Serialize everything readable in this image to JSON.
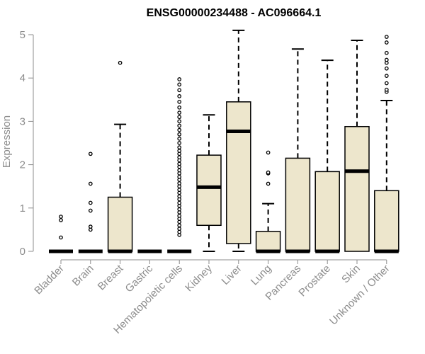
{
  "chart_data": {
    "type": "boxplot",
    "title": "ENSG00000234488 - AC096664.1",
    "ylabel": "Expression",
    "ylim": [
      0,
      5
    ],
    "yticks": [
      0,
      1,
      2,
      3,
      4,
      5
    ],
    "categories": [
      "Bladder",
      "Brain",
      "Breast",
      "Gastric",
      "Hematopoietic cells",
      "Kidney",
      "Liver",
      "Lung",
      "Pancreas",
      "Prostate",
      "Skin",
      "Unknown / Other"
    ],
    "boxes": [
      {
        "category": "Bladder",
        "q1": 0,
        "median": 0,
        "q3": 0,
        "whisker_low": 0,
        "whisker_high": 0,
        "outliers": [
          0.32,
          0.72,
          0.8
        ]
      },
      {
        "category": "Brain",
        "q1": 0,
        "median": 0,
        "q3": 0,
        "whisker_low": 0,
        "whisker_high": 0,
        "outliers": [
          0.5,
          0.57,
          0.94,
          1.12,
          1.56,
          2.25
        ]
      },
      {
        "category": "Breast",
        "q1": 0,
        "median": 0,
        "q3": 1.25,
        "whisker_low": 0,
        "whisker_high": 2.93,
        "outliers": [
          4.35
        ]
      },
      {
        "category": "Gastric",
        "q1": 0,
        "median": 0,
        "q3": 0,
        "whisker_low": 0,
        "whisker_high": 0,
        "outliers": []
      },
      {
        "category": "Hematopoietic cells",
        "q1": 0,
        "median": 0,
        "q3": 0,
        "whisker_low": 0,
        "whisker_high": 0,
        "outliers": [
          0.38,
          0.45,
          0.52,
          0.6,
          0.68,
          0.75,
          0.82,
          0.9,
          0.97,
          1.05,
          1.12,
          1.2,
          1.27,
          1.35,
          1.42,
          1.5,
          1.57,
          1.65,
          1.72,
          1.8,
          1.87,
          1.95,
          2.02,
          2.1,
          2.17,
          2.25,
          2.32,
          2.4,
          2.5,
          2.6,
          2.7,
          2.8,
          2.9,
          3.0,
          3.1,
          3.2,
          3.32,
          3.45,
          3.58,
          3.72,
          3.85,
          3.97
        ]
      },
      {
        "category": "Kidney",
        "q1": 0.6,
        "median": 1.48,
        "q3": 2.22,
        "whisker_low": 0,
        "whisker_high": 3.15,
        "outliers": []
      },
      {
        "category": "Liver",
        "q1": 0.18,
        "median": 2.77,
        "q3": 3.45,
        "whisker_low": 0,
        "whisker_high": 5.1,
        "outliers": []
      },
      {
        "category": "Lung",
        "q1": 0,
        "median": 0,
        "q3": 0.46,
        "whisker_low": 0,
        "whisker_high": 1.1,
        "outliers": [
          1.56,
          1.8,
          1.82,
          2.28
        ]
      },
      {
        "category": "Pancreas",
        "q1": 0,
        "median": 0,
        "q3": 2.15,
        "whisker_low": 0,
        "whisker_high": 4.67,
        "outliers": []
      },
      {
        "category": "Prostate",
        "q1": 0,
        "median": 0,
        "q3": 1.84,
        "whisker_low": 0,
        "whisker_high": 4.41,
        "outliers": []
      },
      {
        "category": "Skin",
        "q1": 0,
        "median": 1.85,
        "q3": 2.88,
        "whisker_low": 0,
        "whisker_high": 4.87,
        "outliers": []
      },
      {
        "category": "Unknown / Other",
        "q1": 0,
        "median": 0,
        "q3": 1.4,
        "whisker_low": 0,
        "whisker_high": 3.48,
        "outliers": [
          3.68,
          3.73,
          3.88,
          4.05,
          4.22,
          4.35,
          4.42,
          4.58,
          4.82,
          4.95
        ]
      }
    ],
    "box_fill": "#ede6cc",
    "axis_color": "#8c8c8c"
  }
}
